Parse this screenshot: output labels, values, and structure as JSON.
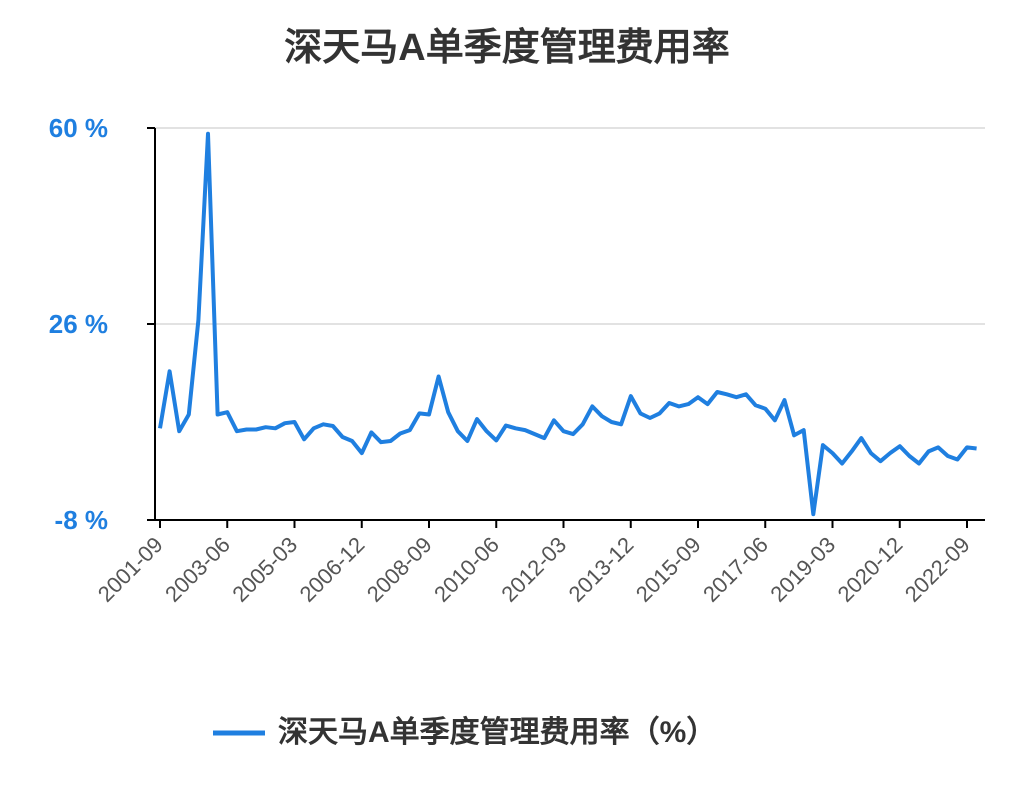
{
  "chart_data": {
    "type": "line",
    "title": "深天马A单季度管理费用率",
    "categories": [
      "2001-09",
      null,
      null,
      null,
      null,
      null,
      null,
      "2003-06",
      null,
      null,
      null,
      null,
      null,
      null,
      "2005-03",
      null,
      null,
      null,
      null,
      null,
      null,
      "2006-12",
      null,
      null,
      null,
      null,
      null,
      null,
      "2008-09",
      null,
      null,
      null,
      null,
      null,
      null,
      "2010-06",
      null,
      null,
      null,
      null,
      null,
      null,
      "2012-03",
      null,
      null,
      null,
      null,
      null,
      null,
      "2013-12",
      null,
      null,
      null,
      null,
      null,
      null,
      "2015-09",
      null,
      null,
      null,
      null,
      null,
      null,
      "2017-06",
      null,
      null,
      null,
      null,
      null,
      null,
      "2019-03",
      null,
      null,
      null,
      null,
      null,
      null,
      "2020-12",
      null,
      null,
      null,
      null,
      null,
      null,
      "2022-09",
      null
    ],
    "series": [
      {
        "name": "深天马A单季度管理费用率（%）",
        "color": "#1f7fe0",
        "values": [
          7.9,
          17.8,
          7.4,
          10.3,
          26.7,
          59.0,
          10.3,
          10.7,
          7.4,
          7.7,
          7.7,
          8.1,
          7.9,
          8.8,
          9.0,
          6.0,
          7.9,
          8.6,
          8.3,
          6.4,
          5.7,
          3.6,
          7.2,
          5.5,
          5.7,
          7.0,
          7.6,
          10.5,
          10.3,
          16.9,
          10.7,
          7.4,
          5.7,
          9.5,
          7.4,
          5.8,
          8.4,
          7.9,
          7.6,
          6.9,
          6.2,
          9.3,
          7.4,
          6.9,
          8.6,
          11.7,
          10.0,
          9.0,
          8.6,
          13.5,
          10.5,
          9.7,
          10.5,
          12.3,
          11.7,
          12.1,
          13.3,
          12.1,
          14.2,
          13.8,
          13.3,
          13.8,
          11.9,
          11.3,
          9.3,
          12.8,
          6.7,
          7.6,
          -7.0,
          5.0,
          3.6,
          1.8,
          3.9,
          6.2,
          3.6,
          2.2,
          3.6,
          4.8,
          3.1,
          1.8,
          3.9,
          4.6,
          3.1,
          2.5,
          4.6,
          4.4
        ]
      }
    ],
    "ylim": [
      -8,
      60
    ],
    "yticks": [
      {
        "value": -8,
        "label": "-8 %"
      },
      {
        "value": 26,
        "label": "26 %"
      },
      {
        "value": 60,
        "label": "60 %"
      }
    ],
    "grid": true
  }
}
